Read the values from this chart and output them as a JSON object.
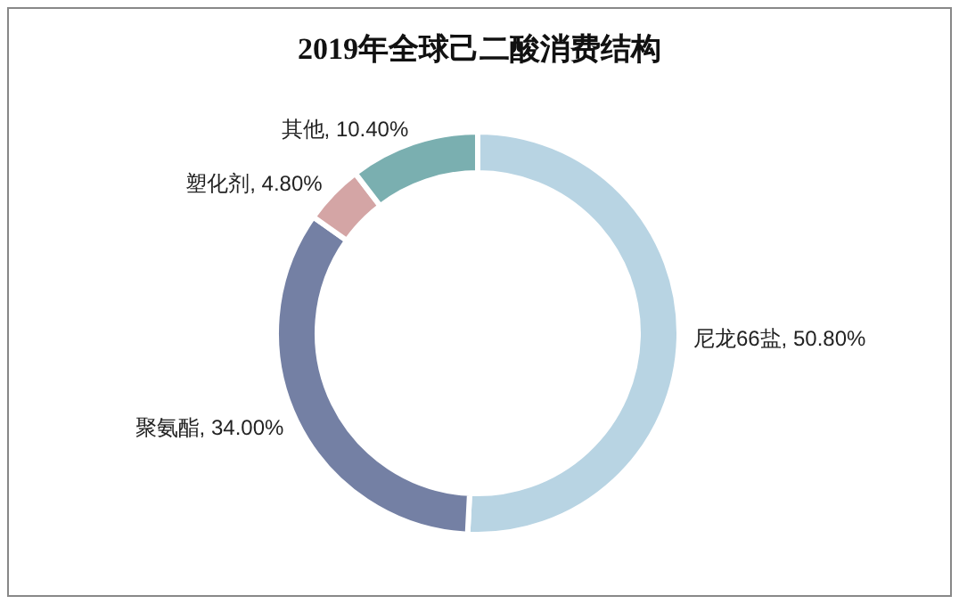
{
  "chart_data": {
    "type": "donut",
    "title": "2019年全球己二酸消费结构",
    "categories": [
      "尼龙66盐",
      "聚氨酯",
      "塑化剂",
      "其他"
    ],
    "values": [
      50.8,
      34.0,
      4.8,
      10.4
    ],
    "value_labels": [
      "50.80%",
      "34.00%",
      "4.80%",
      "10.40%"
    ],
    "colors": [
      "#b8d4e3",
      "#7480a4",
      "#d4a5a5",
      "#7aafb0"
    ]
  }
}
